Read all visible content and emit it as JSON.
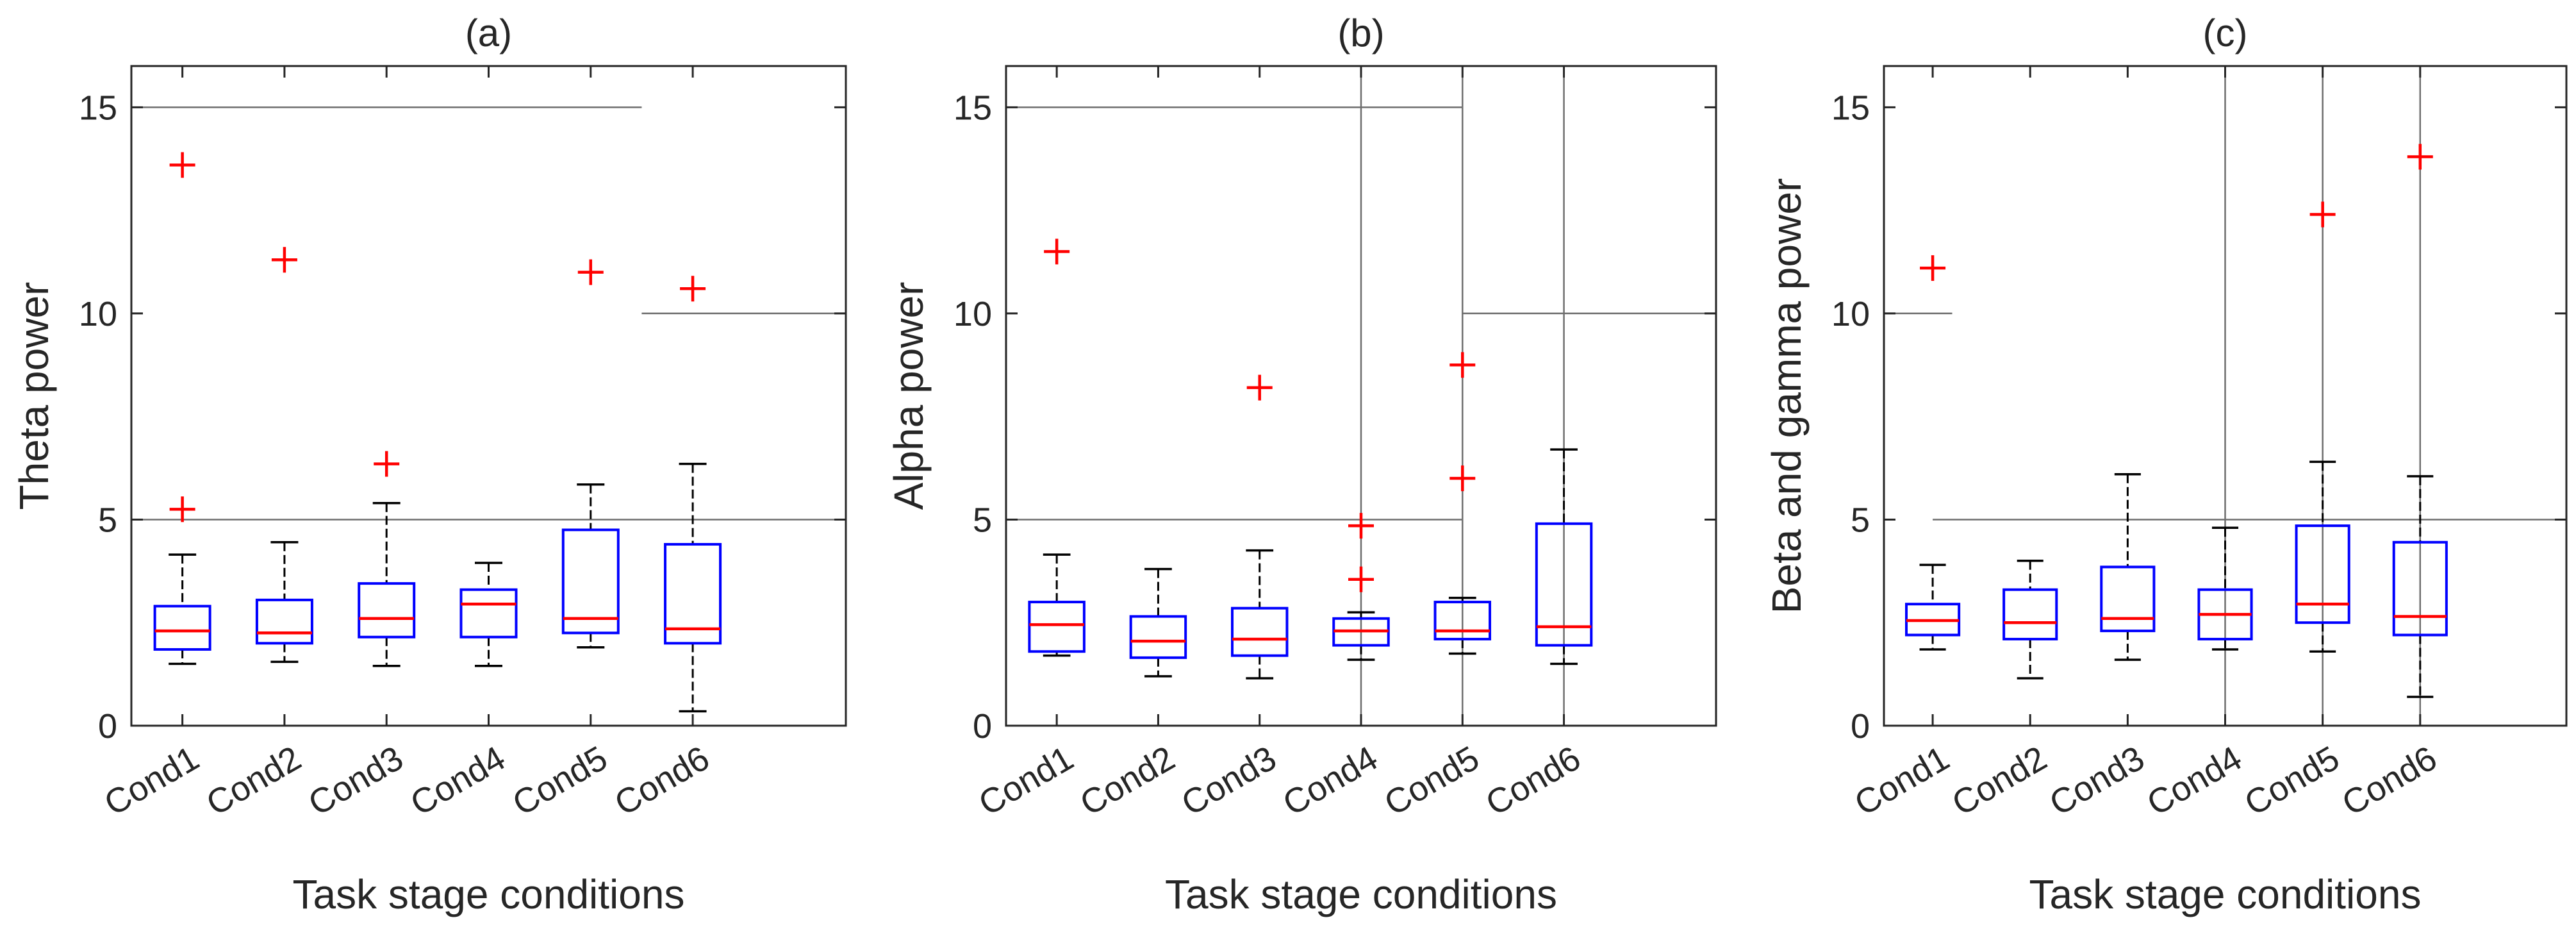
{
  "chart_data": [
    {
      "type": "box",
      "panel_title": "(a)",
      "xlabel": "Task stage conditions",
      "ylabel": "Theta power",
      "ylim": [
        0,
        16
      ],
      "yticks": [
        "0",
        "5",
        "10",
        "15"
      ],
      "categories": [
        "Cond1",
        "Cond2",
        "Cond3",
        "Cond4",
        "Cond5",
        "Cond6"
      ],
      "boxes": [
        {
          "whisker_low": 1.5,
          "q1": 1.85,
          "median": 2.3,
          "q3": 2.9,
          "whisker_high": 4.15,
          "outliers": [
            5.25,
            13.6
          ]
        },
        {
          "whisker_low": 1.55,
          "q1": 2.0,
          "median": 2.25,
          "q3": 3.05,
          "whisker_high": 4.45,
          "outliers": [
            11.3
          ]
        },
        {
          "whisker_low": 1.45,
          "q1": 2.15,
          "median": 2.6,
          "q3": 3.45,
          "whisker_high": 5.4,
          "outliers": [
            6.35
          ]
        },
        {
          "whisker_low": 1.45,
          "q1": 2.15,
          "median": 2.95,
          "q3": 3.3,
          "whisker_high": 3.95,
          "outliers": []
        },
        {
          "whisker_low": 1.9,
          "q1": 2.25,
          "median": 2.6,
          "q3": 4.75,
          "whisker_high": 5.85,
          "outliers": [
            11.0
          ]
        },
        {
          "whisker_low": 0.35,
          "q1": 2.0,
          "median": 2.35,
          "q3": 4.4,
          "whisker_high": 6.35,
          "outliers": [
            10.6
          ]
        }
      ],
      "reference_lines": [
        {
          "orientation": "horizontal",
          "value": 15,
          "from_x": 0.5,
          "to_x": 5.5
        },
        {
          "orientation": "horizontal",
          "value": 5,
          "from_x": 0.5,
          "to_x": 7.5
        },
        {
          "orientation": "horizontal",
          "value": 10,
          "from_x": 5.5,
          "to_x": 7.5
        }
      ]
    },
    {
      "type": "box",
      "panel_title": "(b)",
      "xlabel": "Task stage conditions",
      "ylabel": "Alpha power",
      "ylim": [
        0,
        16
      ],
      "yticks": [
        "0",
        "5",
        "10",
        "15"
      ],
      "categories": [
        "Cond1",
        "Cond2",
        "Cond3",
        "Cond4",
        "Cond5",
        "Cond6"
      ],
      "boxes": [
        {
          "whisker_low": 1.7,
          "q1": 1.8,
          "median": 2.45,
          "q3": 3.0,
          "whisker_high": 4.15,
          "outliers": [
            11.5
          ]
        },
        {
          "whisker_low": 1.2,
          "q1": 1.65,
          "median": 2.05,
          "q3": 2.65,
          "whisker_high": 3.8,
          "outliers": []
        },
        {
          "whisker_low": 1.15,
          "q1": 1.7,
          "median": 2.1,
          "q3": 2.85,
          "whisker_high": 4.25,
          "outliers": [
            8.2
          ]
        },
        {
          "whisker_low": 1.6,
          "q1": 1.95,
          "median": 2.3,
          "q3": 2.6,
          "whisker_high": 2.75,
          "outliers": [
            3.55,
            4.85
          ]
        },
        {
          "whisker_low": 1.75,
          "q1": 2.1,
          "median": 2.3,
          "q3": 3.0,
          "whisker_high": 3.1,
          "outliers": [
            6.0,
            8.75
          ]
        },
        {
          "whisker_low": 1.5,
          "q1": 1.95,
          "median": 2.4,
          "q3": 4.9,
          "whisker_high": 6.7,
          "outliers": []
        }
      ],
      "reference_lines": [
        {
          "orientation": "horizontal",
          "value": 15,
          "from_x": 0.5,
          "to_x": 5.0
        },
        {
          "orientation": "horizontal",
          "value": 5,
          "from_x": 0.5,
          "to_x": 5.0
        },
        {
          "orientation": "horizontal",
          "value": 10,
          "from_x": 5.0,
          "to_x": 7.5
        },
        {
          "orientation": "vertical",
          "value": 4
        },
        {
          "orientation": "vertical",
          "value": 5
        },
        {
          "orientation": "vertical",
          "value": 6
        }
      ]
    },
    {
      "type": "box",
      "panel_title": "(c)",
      "xlabel": "Task stage conditions",
      "ylabel": "Beta and gamma power",
      "ylim": [
        0,
        16
      ],
      "yticks": [
        "0",
        "5",
        "10",
        "15"
      ],
      "categories": [
        "Cond1",
        "Cond2",
        "Cond3",
        "Cond4",
        "Cond5",
        "Cond6"
      ],
      "boxes": [
        {
          "whisker_low": 1.85,
          "q1": 2.2,
          "median": 2.55,
          "q3": 2.95,
          "whisker_high": 3.9,
          "outliers": [
            11.1
          ]
        },
        {
          "whisker_low": 1.15,
          "q1": 2.1,
          "median": 2.5,
          "q3": 3.3,
          "whisker_high": 4.0,
          "outliers": []
        },
        {
          "whisker_low": 1.6,
          "q1": 2.3,
          "median": 2.6,
          "q3": 3.85,
          "whisker_high": 6.1,
          "outliers": []
        },
        {
          "whisker_low": 1.85,
          "q1": 2.1,
          "median": 2.7,
          "q3": 3.3,
          "whisker_high": 4.8,
          "outliers": []
        },
        {
          "whisker_low": 1.8,
          "q1": 2.5,
          "median": 2.95,
          "q3": 4.85,
          "whisker_high": 6.4,
          "outliers": [
            12.4
          ]
        },
        {
          "whisker_low": 0.7,
          "q1": 2.2,
          "median": 2.65,
          "q3": 4.45,
          "whisker_high": 6.05,
          "outliers": [
            13.8
          ]
        }
      ],
      "reference_lines": [
        {
          "orientation": "horizontal",
          "value": 10,
          "from_x": 0.5,
          "to_x": 1.2
        },
        {
          "orientation": "horizontal",
          "value": 5,
          "from_x": 1.0,
          "to_x": 7.5
        },
        {
          "orientation": "vertical",
          "value": 4
        },
        {
          "orientation": "vertical",
          "value": 5
        },
        {
          "orientation": "vertical",
          "value": 6
        }
      ]
    }
  ],
  "colors": {
    "box": "#0000ff",
    "median": "#ff0000",
    "outlier": "#ff0000",
    "whisker": "#000000",
    "axis": "#262626",
    "reference_line": "#6e6e6e"
  }
}
